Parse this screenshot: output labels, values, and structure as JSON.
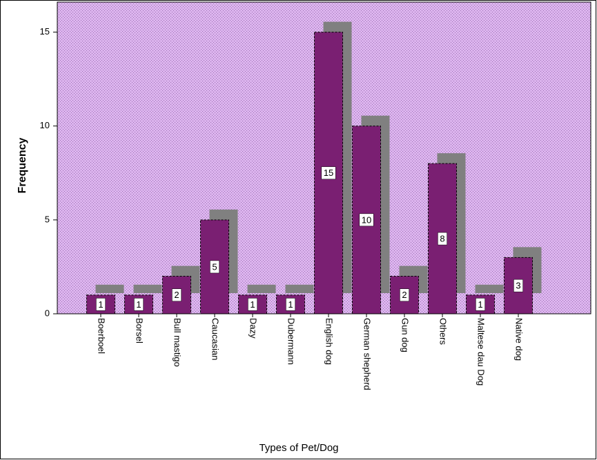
{
  "chart_data": {
    "type": "bar",
    "x_label": "Types of Pet/Dog",
    "y_label": "Frequency",
    "categories": [
      "Boerboel",
      "Borsel",
      "Bull mastigo",
      "Caucasian",
      "Dazy",
      "Dubermann",
      "English  dog",
      "German shepherd",
      "Gun dog",
      "Others",
      "Maltese dau Dog",
      "Native dog"
    ],
    "values": [
      1,
      1,
      2,
      5,
      1,
      1,
      15,
      10,
      2,
      8,
      1,
      3
    ],
    "color": "#7a1f72",
    "ylim": [
      0,
      16.6
    ],
    "yticks": [
      0,
      5,
      10,
      15
    ]
  }
}
